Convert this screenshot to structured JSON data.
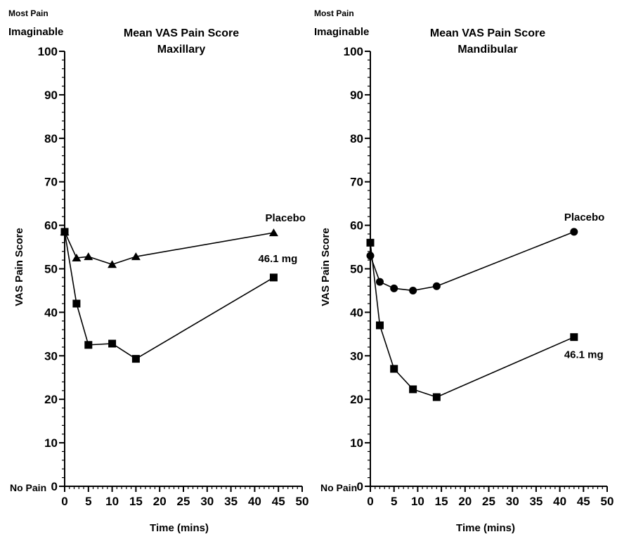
{
  "chart_data": [
    {
      "type": "line",
      "title": "Mean VAS Pain Score",
      "subtitle": "Maxillary",
      "xlabel": "Time (mins)",
      "ylabel": "VAS Pain Score",
      "y_top_label": [
        "Most Pain",
        "Imaginable"
      ],
      "y_bottom_label": "No Pain",
      "xlim": [
        0,
        50
      ],
      "ylim": [
        0,
        100
      ],
      "x_ticks": [
        0,
        5,
        10,
        15,
        20,
        25,
        30,
        35,
        40,
        45,
        50
      ],
      "y_ticks": [
        0,
        10,
        20,
        30,
        40,
        50,
        60,
        70,
        80,
        90,
        100
      ],
      "grid": false,
      "series": [
        {
          "name": "Placebo",
          "marker": "triangle",
          "points": [
            [
              0,
              58.5
            ],
            [
              2.5,
              52.5
            ],
            [
              5,
              52.8
            ],
            [
              10,
              51
            ],
            [
              15,
              52.8
            ],
            [
              44,
              58.3
            ]
          ],
          "label_at": [
            44,
            58.3
          ]
        },
        {
          "name": "46.1 mg",
          "marker": "square",
          "points": [
            [
              0,
              58.5
            ],
            [
              2.5,
              42
            ],
            [
              5,
              32.5
            ],
            [
              10,
              32.8
            ],
            [
              15,
              29.3
            ],
            [
              44,
              48
            ]
          ],
          "label_at": [
            44,
            48
          ]
        }
      ]
    },
    {
      "type": "line",
      "title": "Mean VAS Pain Score",
      "subtitle": "Mandibular",
      "xlabel": "Time (mins)",
      "ylabel": "VAS Pain Score",
      "y_top_label": [
        "Most Pain",
        "Imaginable"
      ],
      "y_bottom_label": "No Pain",
      "xlim": [
        0,
        50
      ],
      "ylim": [
        0,
        100
      ],
      "x_ticks": [
        0,
        5,
        10,
        15,
        20,
        25,
        30,
        35,
        40,
        45,
        50
      ],
      "y_ticks": [
        0,
        10,
        20,
        30,
        40,
        50,
        60,
        70,
        80,
        90,
        100
      ],
      "grid": false,
      "series": [
        {
          "name": "Placebo",
          "marker": "circle",
          "points": [
            [
              0,
              53
            ],
            [
              2,
              47
            ],
            [
              5,
              45.5
            ],
            [
              9,
              45
            ],
            [
              14,
              46
            ],
            [
              43,
              58.5
            ]
          ],
          "label_at": [
            43,
            58.5
          ]
        },
        {
          "name": "46.1 mg",
          "marker": "square",
          "points": [
            [
              0,
              56
            ],
            [
              2,
              37
            ],
            [
              5,
              27
            ],
            [
              9,
              22.3
            ],
            [
              14,
              20.5
            ],
            [
              43,
              34.3
            ]
          ],
          "label_at": [
            43,
            34.3
          ]
        }
      ]
    }
  ]
}
